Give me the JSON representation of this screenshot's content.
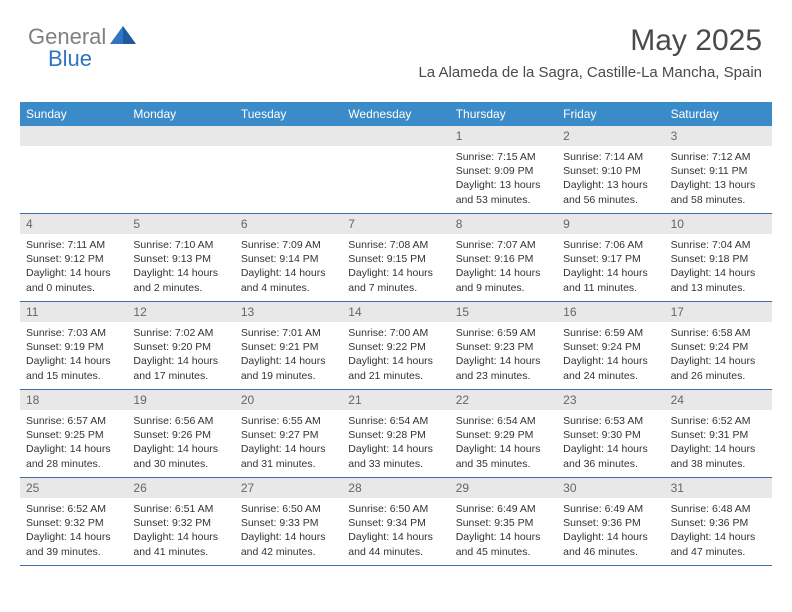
{
  "brand": {
    "gray": "General",
    "blue": "Blue"
  },
  "header": {
    "title": "May 2025",
    "subtitle": "La Alameda de la Sagra, Castille-La Mancha, Spain"
  },
  "colors": {
    "header_bg": "#3b8bc9",
    "border": "#3b6fa8",
    "daynum_bg": "#e8e8e8",
    "logo_gray": "#808080",
    "logo_blue": "#2f75c1"
  },
  "day_names": [
    "Sunday",
    "Monday",
    "Tuesday",
    "Wednesday",
    "Thursday",
    "Friday",
    "Saturday"
  ],
  "weeks": [
    [
      null,
      null,
      null,
      null,
      {
        "n": "1",
        "sr": "Sunrise: 7:15 AM",
        "ss": "Sunset: 9:09 PM",
        "d1": "Daylight: 13 hours",
        "d2": "and 53 minutes."
      },
      {
        "n": "2",
        "sr": "Sunrise: 7:14 AM",
        "ss": "Sunset: 9:10 PM",
        "d1": "Daylight: 13 hours",
        "d2": "and 56 minutes."
      },
      {
        "n": "3",
        "sr": "Sunrise: 7:12 AM",
        "ss": "Sunset: 9:11 PM",
        "d1": "Daylight: 13 hours",
        "d2": "and 58 minutes."
      }
    ],
    [
      {
        "n": "4",
        "sr": "Sunrise: 7:11 AM",
        "ss": "Sunset: 9:12 PM",
        "d1": "Daylight: 14 hours",
        "d2": "and 0 minutes."
      },
      {
        "n": "5",
        "sr": "Sunrise: 7:10 AM",
        "ss": "Sunset: 9:13 PM",
        "d1": "Daylight: 14 hours",
        "d2": "and 2 minutes."
      },
      {
        "n": "6",
        "sr": "Sunrise: 7:09 AM",
        "ss": "Sunset: 9:14 PM",
        "d1": "Daylight: 14 hours",
        "d2": "and 4 minutes."
      },
      {
        "n": "7",
        "sr": "Sunrise: 7:08 AM",
        "ss": "Sunset: 9:15 PM",
        "d1": "Daylight: 14 hours",
        "d2": "and 7 minutes."
      },
      {
        "n": "8",
        "sr": "Sunrise: 7:07 AM",
        "ss": "Sunset: 9:16 PM",
        "d1": "Daylight: 14 hours",
        "d2": "and 9 minutes."
      },
      {
        "n": "9",
        "sr": "Sunrise: 7:06 AM",
        "ss": "Sunset: 9:17 PM",
        "d1": "Daylight: 14 hours",
        "d2": "and 11 minutes."
      },
      {
        "n": "10",
        "sr": "Sunrise: 7:04 AM",
        "ss": "Sunset: 9:18 PM",
        "d1": "Daylight: 14 hours",
        "d2": "and 13 minutes."
      }
    ],
    [
      {
        "n": "11",
        "sr": "Sunrise: 7:03 AM",
        "ss": "Sunset: 9:19 PM",
        "d1": "Daylight: 14 hours",
        "d2": "and 15 minutes."
      },
      {
        "n": "12",
        "sr": "Sunrise: 7:02 AM",
        "ss": "Sunset: 9:20 PM",
        "d1": "Daylight: 14 hours",
        "d2": "and 17 minutes."
      },
      {
        "n": "13",
        "sr": "Sunrise: 7:01 AM",
        "ss": "Sunset: 9:21 PM",
        "d1": "Daylight: 14 hours",
        "d2": "and 19 minutes."
      },
      {
        "n": "14",
        "sr": "Sunrise: 7:00 AM",
        "ss": "Sunset: 9:22 PM",
        "d1": "Daylight: 14 hours",
        "d2": "and 21 minutes."
      },
      {
        "n": "15",
        "sr": "Sunrise: 6:59 AM",
        "ss": "Sunset: 9:23 PM",
        "d1": "Daylight: 14 hours",
        "d2": "and 23 minutes."
      },
      {
        "n": "16",
        "sr": "Sunrise: 6:59 AM",
        "ss": "Sunset: 9:24 PM",
        "d1": "Daylight: 14 hours",
        "d2": "and 24 minutes."
      },
      {
        "n": "17",
        "sr": "Sunrise: 6:58 AM",
        "ss": "Sunset: 9:24 PM",
        "d1": "Daylight: 14 hours",
        "d2": "and 26 minutes."
      }
    ],
    [
      {
        "n": "18",
        "sr": "Sunrise: 6:57 AM",
        "ss": "Sunset: 9:25 PM",
        "d1": "Daylight: 14 hours",
        "d2": "and 28 minutes."
      },
      {
        "n": "19",
        "sr": "Sunrise: 6:56 AM",
        "ss": "Sunset: 9:26 PM",
        "d1": "Daylight: 14 hours",
        "d2": "and 30 minutes."
      },
      {
        "n": "20",
        "sr": "Sunrise: 6:55 AM",
        "ss": "Sunset: 9:27 PM",
        "d1": "Daylight: 14 hours",
        "d2": "and 31 minutes."
      },
      {
        "n": "21",
        "sr": "Sunrise: 6:54 AM",
        "ss": "Sunset: 9:28 PM",
        "d1": "Daylight: 14 hours",
        "d2": "and 33 minutes."
      },
      {
        "n": "22",
        "sr": "Sunrise: 6:54 AM",
        "ss": "Sunset: 9:29 PM",
        "d1": "Daylight: 14 hours",
        "d2": "and 35 minutes."
      },
      {
        "n": "23",
        "sr": "Sunrise: 6:53 AM",
        "ss": "Sunset: 9:30 PM",
        "d1": "Daylight: 14 hours",
        "d2": "and 36 minutes."
      },
      {
        "n": "24",
        "sr": "Sunrise: 6:52 AM",
        "ss": "Sunset: 9:31 PM",
        "d1": "Daylight: 14 hours",
        "d2": "and 38 minutes."
      }
    ],
    [
      {
        "n": "25",
        "sr": "Sunrise: 6:52 AM",
        "ss": "Sunset: 9:32 PM",
        "d1": "Daylight: 14 hours",
        "d2": "and 39 minutes."
      },
      {
        "n": "26",
        "sr": "Sunrise: 6:51 AM",
        "ss": "Sunset: 9:32 PM",
        "d1": "Daylight: 14 hours",
        "d2": "and 41 minutes."
      },
      {
        "n": "27",
        "sr": "Sunrise: 6:50 AM",
        "ss": "Sunset: 9:33 PM",
        "d1": "Daylight: 14 hours",
        "d2": "and 42 minutes."
      },
      {
        "n": "28",
        "sr": "Sunrise: 6:50 AM",
        "ss": "Sunset: 9:34 PM",
        "d1": "Daylight: 14 hours",
        "d2": "and 44 minutes."
      },
      {
        "n": "29",
        "sr": "Sunrise: 6:49 AM",
        "ss": "Sunset: 9:35 PM",
        "d1": "Daylight: 14 hours",
        "d2": "and 45 minutes."
      },
      {
        "n": "30",
        "sr": "Sunrise: 6:49 AM",
        "ss": "Sunset: 9:36 PM",
        "d1": "Daylight: 14 hours",
        "d2": "and 46 minutes."
      },
      {
        "n": "31",
        "sr": "Sunrise: 6:48 AM",
        "ss": "Sunset: 9:36 PM",
        "d1": "Daylight: 14 hours",
        "d2": "and 47 minutes."
      }
    ]
  ]
}
